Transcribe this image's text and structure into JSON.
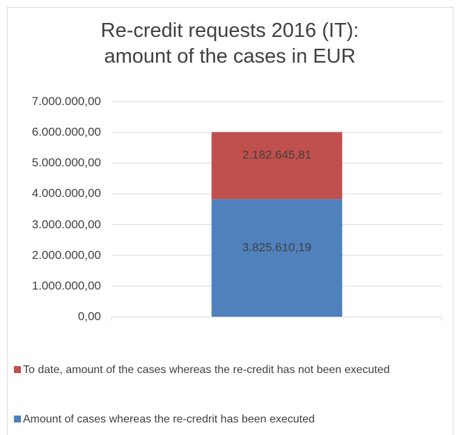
{
  "chart_data": {
    "type": "stacked_bar",
    "title": "Re-credit requests 2016 (IT): amount of the cases in EUR",
    "categories": [
      null
    ],
    "series": [
      {
        "name": "Amount of cases whereas the re-credrit has been executed",
        "color": "#4f81bd",
        "values": [
          3825610.19
        ],
        "value_labels": [
          "3.825.610,19"
        ]
      },
      {
        "name": "To date, amount of the cases whereas the re-credit has not been executed",
        "color": "#c0504d",
        "values": [
          2182645.81
        ],
        "value_labels": [
          "2.182.645,81"
        ]
      }
    ],
    "ylim": [
      0,
      7000000
    ],
    "yticks": [
      {
        "value": 0,
        "label": "0,00"
      },
      {
        "value": 1000000,
        "label": "1.000.000,00"
      },
      {
        "value": 2000000,
        "label": "2.000.000,00"
      },
      {
        "value": 3000000,
        "label": "3.000.000,00"
      },
      {
        "value": 4000000,
        "label": "4.000.000,00"
      },
      {
        "value": 5000000,
        "label": "5.000.000,00"
      },
      {
        "value": 6000000,
        "label": "6.000.000,00"
      },
      {
        "value": 7000000,
        "label": "7.000.000,00"
      }
    ],
    "grid": true
  }
}
